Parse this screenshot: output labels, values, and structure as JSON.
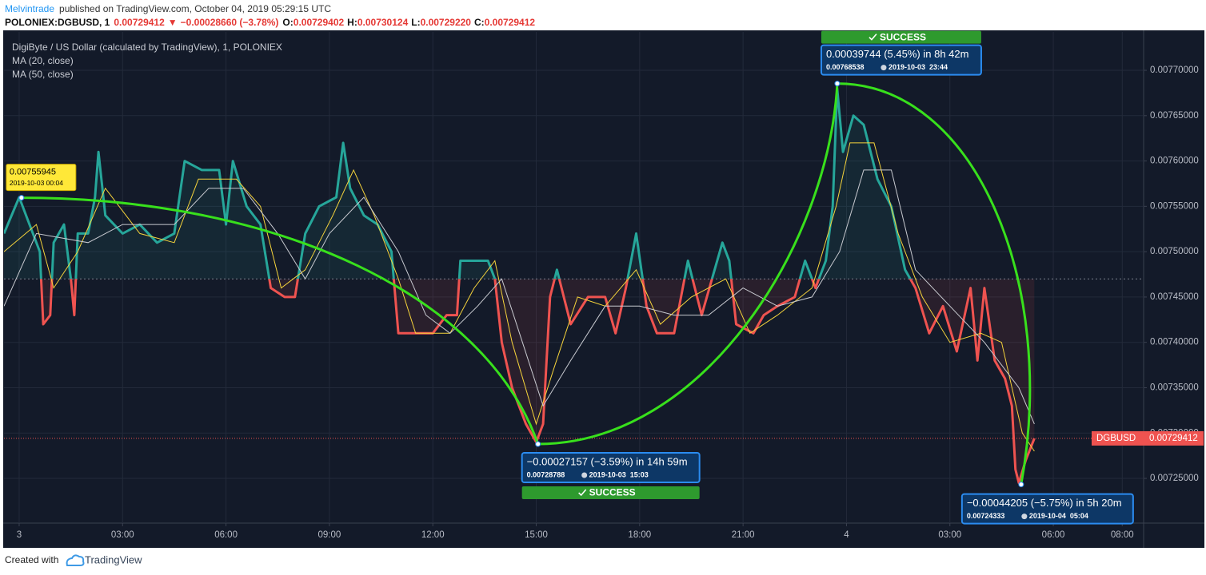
{
  "header": {
    "author": "Melvintrade",
    "published": "published on TradingView.com, October 04, 2019 05:29:15 UTC",
    "symbol": "POLONIEX:DGBUSD, 1",
    "last": "0.00729412",
    "arrow": "▼",
    "change": "−0.00028660 (−3.78%)",
    "ohlc": [
      {
        "label": "O:",
        "value": "0.00729402"
      },
      {
        "label": "H:",
        "value": "0.00730124"
      },
      {
        "label": "L:",
        "value": "0.00729220"
      },
      {
        "label": "C:",
        "value": "0.00729412"
      }
    ]
  },
  "footer": {
    "text": "Created with",
    "brand": "TradingView"
  },
  "chart_data": {
    "type": "line",
    "xlim": [
      -0.44,
      32.62
    ],
    "ylim": [
      0.0072007,
      0.0077423
    ],
    "grid": true,
    "xticks": [
      {
        "value": 0,
        "label": "3"
      },
      {
        "value": 3,
        "label": "03:00"
      },
      {
        "value": 6,
        "label": "06:00"
      },
      {
        "value": 9,
        "label": "09:00"
      },
      {
        "value": 12,
        "label": "12:00"
      },
      {
        "value": 15,
        "label": "15:00"
      },
      {
        "value": 18,
        "label": "18:00"
      },
      {
        "value": 21,
        "label": "21:00"
      },
      {
        "value": 24,
        "label": "4"
      },
      {
        "value": 27,
        "label": "03:00"
      },
      {
        "value": 30,
        "label": "06:00"
      },
      {
        "value": 32,
        "label": "08:00"
      }
    ],
    "yticks": [
      {
        "value": 0.00725,
        "label": "0.00725000"
      },
      {
        "value": 0.0073,
        "label": "0.00730000"
      },
      {
        "value": 0.00735,
        "label": "0.00735000"
      },
      {
        "value": 0.0074,
        "label": "0.00740000"
      },
      {
        "value": 0.00745,
        "label": "0.00745000"
      },
      {
        "value": 0.0075,
        "label": "0.00750000"
      },
      {
        "value": 0.00755,
        "label": "0.00755000"
      },
      {
        "value": 0.0076,
        "label": "0.00760000"
      },
      {
        "value": 0.00765,
        "label": "0.00765000"
      },
      {
        "value": 0.0077,
        "label": "0.00770000"
      }
    ],
    "last_price_label": "DGBUSD",
    "last_price_color": "#ef5350",
    "series": [
      {
        "name": "DigiByte / US Dollar (calculated by TradingView), 1, POLONIEX",
        "color": "#26a69a",
        "down_color": "#ef5350",
        "baseline": 0.00747,
        "x": [
          -0.44,
          0,
          0.3,
          0.6,
          0.7,
          0.9,
          1.0,
          1.3,
          1.5,
          1.6,
          1.7,
          2.0,
          2.2,
          2.3,
          2.5,
          3.0,
          3.5,
          4.0,
          4.5,
          4.8,
          5.3,
          5.8,
          6.0,
          6.2,
          6.6,
          7.0,
          7.3,
          7.7,
          8.0,
          8.3,
          8.7,
          9.2,
          9.4,
          9.6,
          10.0,
          10.4,
          10.8,
          11.0,
          11.5,
          12.0,
          12.4,
          12.7,
          12.8,
          13.2,
          13.6,
          13.8,
          14.0,
          14.3,
          14.7,
          15.0,
          15.2,
          15.4,
          15.6,
          16.0,
          16.5,
          17.0,
          17.3,
          17.6,
          17.9,
          18.2,
          18.5,
          19.0,
          19.4,
          19.8,
          20.1,
          20.4,
          20.6,
          20.8,
          21.3,
          21.6,
          22.0,
          22.5,
          22.8,
          23.1,
          23.4,
          23.6,
          23.73,
          23.9,
          24.2,
          24.5,
          24.9,
          25.3,
          25.7,
          26.0,
          26.4,
          26.8,
          27.2,
          27.6,
          27.8,
          28.0,
          28.3,
          28.6,
          28.8,
          28.9,
          29.0,
          29.2,
          29.45
        ],
        "values": [
          0.00752,
          0.00756,
          0.00753,
          0.0075,
          0.00742,
          0.00743,
          0.00751,
          0.00753,
          0.00747,
          0.00743,
          0.00752,
          0.00752,
          0.00756,
          0.00761,
          0.00754,
          0.00752,
          0.00753,
          0.00751,
          0.00752,
          0.0076,
          0.00759,
          0.00759,
          0.00753,
          0.0076,
          0.00755,
          0.00753,
          0.00746,
          0.00745,
          0.00745,
          0.00752,
          0.00755,
          0.00756,
          0.00762,
          0.00757,
          0.00754,
          0.00753,
          0.0075,
          0.00741,
          0.00741,
          0.00741,
          0.00743,
          0.00743,
          0.00749,
          0.00749,
          0.00749,
          0.00747,
          0.0074,
          0.00735,
          0.00731,
          0.00729,
          0.00731,
          0.00745,
          0.00748,
          0.00742,
          0.00745,
          0.00745,
          0.00741,
          0.00746,
          0.00752,
          0.00744,
          0.00741,
          0.00741,
          0.00749,
          0.00743,
          0.00747,
          0.00751,
          0.00749,
          0.00742,
          0.00741,
          0.00743,
          0.00744,
          0.00745,
          0.00749,
          0.00746,
          0.00749,
          0.00755,
          0.00768,
          0.00761,
          0.00765,
          0.00764,
          0.00758,
          0.00755,
          0.00748,
          0.00746,
          0.00741,
          0.00744,
          0.00739,
          0.00746,
          0.00738,
          0.00746,
          0.00738,
          0.00736,
          0.00733,
          0.00726,
          0.007245,
          0.00727,
          0.00729412
        ]
      },
      {
        "name": "MA (20, close)",
        "color": "#f5d33b",
        "x": [
          -0.44,
          0.5,
          1.0,
          1.7,
          2.5,
          3.5,
          4.5,
          5.2,
          6.3,
          7.0,
          7.6,
          8.3,
          9.1,
          9.7,
          10.3,
          11.0,
          11.5,
          12.5,
          13.2,
          13.8,
          14.3,
          15.0,
          15.5,
          16.2,
          17.0,
          17.9,
          18.6,
          19.5,
          20.5,
          21.2,
          22.0,
          23.0,
          23.7,
          24.1,
          24.8,
          25.5,
          26.2,
          27.0,
          27.9,
          28.5,
          29.1,
          29.45
        ],
        "values": [
          0.0075,
          0.00753,
          0.00746,
          0.0075,
          0.00757,
          0.00752,
          0.00751,
          0.00758,
          0.00758,
          0.00755,
          0.00746,
          0.00748,
          0.00754,
          0.00759,
          0.00754,
          0.00747,
          0.00741,
          0.00741,
          0.00746,
          0.00749,
          0.0074,
          0.00731,
          0.00737,
          0.00745,
          0.00744,
          0.00748,
          0.00742,
          0.00745,
          0.00747,
          0.00741,
          0.00743,
          0.00746,
          0.00755,
          0.00762,
          0.00762,
          0.00752,
          0.00745,
          0.0074,
          0.00741,
          0.0074,
          0.0073,
          0.00728
        ]
      },
      {
        "name": "MA (50, close)",
        "color": "#c8cad0",
        "x": [
          -0.44,
          0.5,
          2.0,
          3.0,
          4.5,
          5.5,
          6.5,
          7.5,
          8.3,
          9.0,
          10.0,
          11.0,
          11.8,
          12.5,
          13.3,
          14.0,
          14.6,
          15.2,
          16.0,
          17.0,
          18.0,
          19.0,
          20.0,
          21.0,
          22.0,
          23.0,
          23.8,
          24.5,
          25.3,
          26.0,
          27.0,
          28.0,
          29.0,
          29.45
        ],
        "values": [
          0.00744,
          0.00752,
          0.00751,
          0.00753,
          0.00753,
          0.00757,
          0.00757,
          0.00752,
          0.00747,
          0.00752,
          0.00756,
          0.0075,
          0.00743,
          0.00741,
          0.00744,
          0.00747,
          0.0074,
          0.00733,
          0.00738,
          0.00744,
          0.00744,
          0.00743,
          0.00743,
          0.00746,
          0.00744,
          0.00745,
          0.0075,
          0.00759,
          0.00759,
          0.00748,
          0.00744,
          0.0074,
          0.00735,
          0.00731
        ]
      }
    ],
    "annotations": [
      {
        "x": 0.067,
        "value": 0.00755945,
        "time": "2019-10-03 00:04"
      },
      {
        "x": 15.05,
        "value": 0.00728788,
        "time": "2019-10-03  15:03",
        "change": "−0.00027157 (−3.59%) in 14h 59m",
        "status": "SUCCESS"
      },
      {
        "x": 23.733,
        "value": 0.00768538,
        "time": "2019-10-03  23:44",
        "change": "0.00039744 (5.45%) in 8h 42m",
        "status": "SUCCESS"
      },
      {
        "x": 29.067,
        "value": 0.00724333,
        "time": "2019-10-04  05:04",
        "change": "−0.00044205 (−5.75%) in 5h 20m"
      }
    ]
  }
}
